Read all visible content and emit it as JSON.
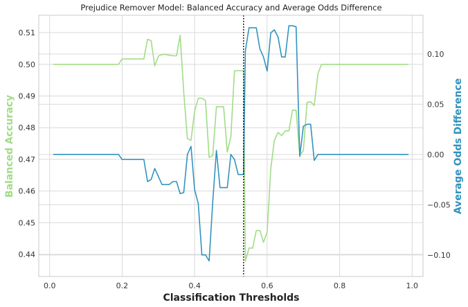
{
  "chart_data": {
    "type": "line",
    "title": "Prejudice Remover Model: Balanced Accuracy and Average Odds Difference",
    "xlabel": "Classification Thresholds",
    "y1label": "Balanced Accuracy",
    "y2label": "Average Odds Difference",
    "xlim": [
      -0.03,
      1.03
    ],
    "y1lim": [
      0.433,
      0.5155
    ],
    "y2lim": [
      -0.1215,
      0.1385
    ],
    "xticks": [
      "0.0",
      "0.2",
      "0.4",
      "0.6",
      "0.8",
      "1.0"
    ],
    "xtick_values": [
      0.0,
      0.2,
      0.4,
      0.6,
      0.8,
      1.0
    ],
    "y1ticks": [
      "0.44",
      "0.45",
      "0.46",
      "0.47",
      "0.48",
      "0.49",
      "0.50",
      "0.51"
    ],
    "y1tick_values": [
      0.44,
      0.45,
      0.46,
      0.47,
      0.48,
      0.49,
      0.5,
      0.51
    ],
    "y2ticks": [
      "−0.10",
      "−0.05",
      "0.00",
      "0.05",
      "0.10"
    ],
    "y2tick_values": [
      -0.1,
      -0.05,
      0.0,
      0.05,
      0.1
    ],
    "grid": true,
    "vline_x": 0.535,
    "colors": {
      "balanced_accuracy": "#a1dc86",
      "average_odds_difference": "#3193be",
      "vline": "#111111"
    },
    "series": [
      {
        "name": "Balanced Accuracy",
        "axis": "left",
        "x": [
          0.01,
          0.19,
          0.2,
          0.26,
          0.27,
          0.28,
          0.29,
          0.3,
          0.31,
          0.32,
          0.33,
          0.34,
          0.35,
          0.36,
          0.37,
          0.38,
          0.39,
          0.4,
          0.41,
          0.42,
          0.43,
          0.44,
          0.45,
          0.46,
          0.47,
          0.48,
          0.49,
          0.5,
          0.51,
          0.52,
          0.53,
          0.535,
          0.54,
          0.55,
          0.56,
          0.57,
          0.58,
          0.59,
          0.6,
          0.61,
          0.62,
          0.63,
          0.64,
          0.65,
          0.66,
          0.67,
          0.68,
          0.69,
          0.7,
          0.71,
          0.72,
          0.73,
          0.74,
          0.75,
          0.76,
          0.99
        ],
        "y": [
          0.5,
          0.5,
          0.5017,
          0.5017,
          0.5079,
          0.5075,
          0.4995,
          0.5026,
          0.5031,
          0.5031,
          0.5029,
          0.5027,
          0.5027,
          0.5092,
          0.4912,
          0.4765,
          0.476,
          0.4852,
          0.4893,
          0.4893,
          0.4886,
          0.4706,
          0.4712,
          0.4866,
          0.4866,
          0.4866,
          0.4723,
          0.4772,
          0.498,
          0.498,
          0.498,
          0.498,
          0.4378,
          0.442,
          0.442,
          0.4475,
          0.4475,
          0.4438,
          0.447,
          0.467,
          0.476,
          0.4785,
          0.4775,
          0.479,
          0.479,
          0.4855,
          0.4855,
          0.4712,
          0.4728,
          0.488,
          0.4882,
          0.487,
          0.497,
          0.5,
          0.5,
          0.5
        ]
      },
      {
        "name": "Average Odds Difference",
        "axis": "right",
        "x": [
          0.01,
          0.19,
          0.2,
          0.26,
          0.27,
          0.28,
          0.29,
          0.3,
          0.31,
          0.32,
          0.33,
          0.34,
          0.35,
          0.36,
          0.37,
          0.38,
          0.39,
          0.4,
          0.41,
          0.42,
          0.43,
          0.44,
          0.45,
          0.46,
          0.47,
          0.48,
          0.49,
          0.5,
          0.51,
          0.52,
          0.53,
          0.535,
          0.54,
          0.55,
          0.56,
          0.57,
          0.58,
          0.59,
          0.6,
          0.61,
          0.62,
          0.63,
          0.64,
          0.65,
          0.66,
          0.67,
          0.68,
          0.69,
          0.7,
          0.71,
          0.72,
          0.73,
          0.74,
          0.75,
          0.76,
          0.99
        ],
        "y": [
          0.0,
          0.0,
          -0.005,
          -0.005,
          -0.027,
          -0.025,
          -0.014,
          -0.022,
          -0.03,
          -0.03,
          -0.03,
          -0.027,
          -0.027,
          -0.039,
          -0.038,
          0.0,
          0.008,
          -0.035,
          -0.049,
          -0.1,
          -0.1,
          -0.106,
          -0.047,
          0.004,
          -0.033,
          -0.033,
          -0.033,
          0.0,
          -0.005,
          -0.02,
          -0.02,
          -0.02,
          0.103,
          0.126,
          0.126,
          0.126,
          0.105,
          0.097,
          0.083,
          0.121,
          0.124,
          0.117,
          0.097,
          0.097,
          0.128,
          0.128,
          0.127,
          -0.002,
          0.028,
          0.03,
          0.03,
          -0.006,
          0.0,
          0.0,
          0.0,
          0.0
        ]
      }
    ]
  }
}
